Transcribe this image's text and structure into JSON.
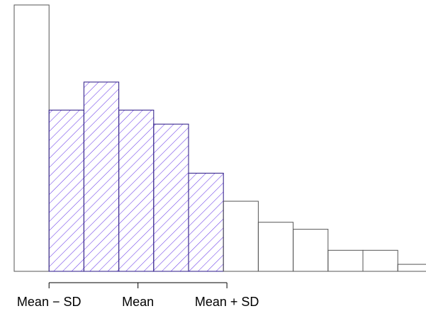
{
  "chart_data": {
    "type": "bar",
    "title": "",
    "xlabel": "",
    "ylabel": "",
    "values": [
      38,
      23,
      27,
      23,
      21,
      14,
      10,
      7,
      6,
      3,
      3,
      1
    ],
    "ylim": [
      0,
      38
    ],
    "highlighted_range": [
      1,
      5
    ],
    "highlight_color": "#6a3de8",
    "highlight_fill": "diagonal-hatch",
    "bar_outline_color": "#555555",
    "ticks": [
      {
        "label": "Mean − SD",
        "position": 1
      },
      {
        "label": "Mean",
        "position": 3.55
      },
      {
        "label": "Mean + SD",
        "position": 6.1
      }
    ],
    "grid": false,
    "legend": "none"
  }
}
